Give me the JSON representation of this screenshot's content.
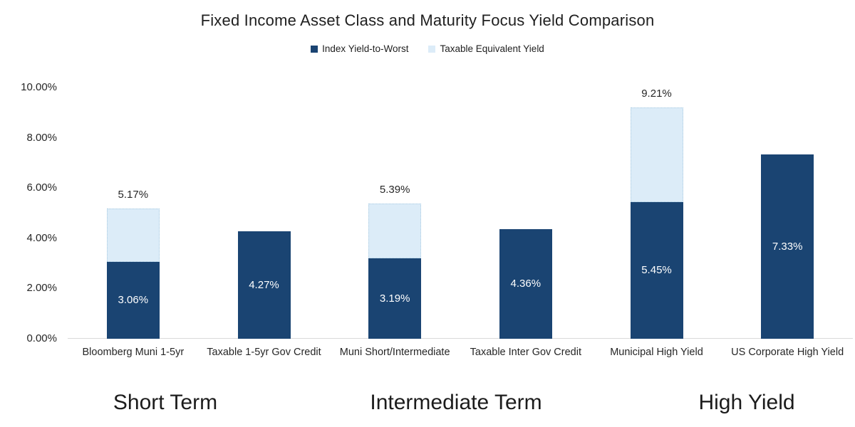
{
  "title": "Fixed Income Asset Class and Maturity Focus Yield Comparison",
  "legend": {
    "items": [
      {
        "label": "Index Yield-to-Worst",
        "color": "#1a4472"
      },
      {
        "label": "Taxable Equivalent Yield",
        "color": "#dcecf8"
      }
    ]
  },
  "colors": {
    "index_yield": "#1a4472",
    "taxable_equivalent": "#dcecf8",
    "axis_line": "#d9d9d9",
    "inside_label": "#ffffff",
    "outside_label": "#262626"
  },
  "chart_data": {
    "type": "bar",
    "stacked": true,
    "grid": false,
    "legend_position": "top",
    "title": "Fixed Income Asset Class and Maturity Focus Yield Comparison",
    "categories": [
      "Bloomberg Muni 1-5yr",
      "Taxable 1-5yr Gov Credit",
      "Muni Short/Intermediate",
      "Taxable Inter Gov Credit",
      "Municipal High Yield",
      "US Corporate High Yield"
    ],
    "series": [
      {
        "name": "Index Yield-to-Worst",
        "color": "#1a4472",
        "values": [
          3.06,
          4.27,
          3.19,
          4.36,
          5.45,
          7.33
        ],
        "value_labels": [
          "3.06%",
          "4.27%",
          "3.19%",
          "4.36%",
          "5.45%",
          "7.33%"
        ]
      },
      {
        "name": "Taxable Equivalent Yield",
        "color": "#dcecf8",
        "stack_totals": [
          5.17,
          null,
          5.39,
          null,
          9.21,
          null
        ],
        "total_labels": [
          "5.17%",
          null,
          "5.39%",
          null,
          "9.21%",
          null
        ]
      }
    ],
    "y_axis": {
      "ylim": [
        0,
        10
      ],
      "ticks": [
        0,
        2,
        4,
        6,
        8,
        10
      ],
      "tick_labels": [
        "0.00%",
        "2.00%",
        "4.00%",
        "6.00%",
        "8.00%",
        "10.00%"
      ]
    },
    "group_labels": [
      "Short Term",
      "Intermediate Term",
      "High Yield"
    ]
  }
}
